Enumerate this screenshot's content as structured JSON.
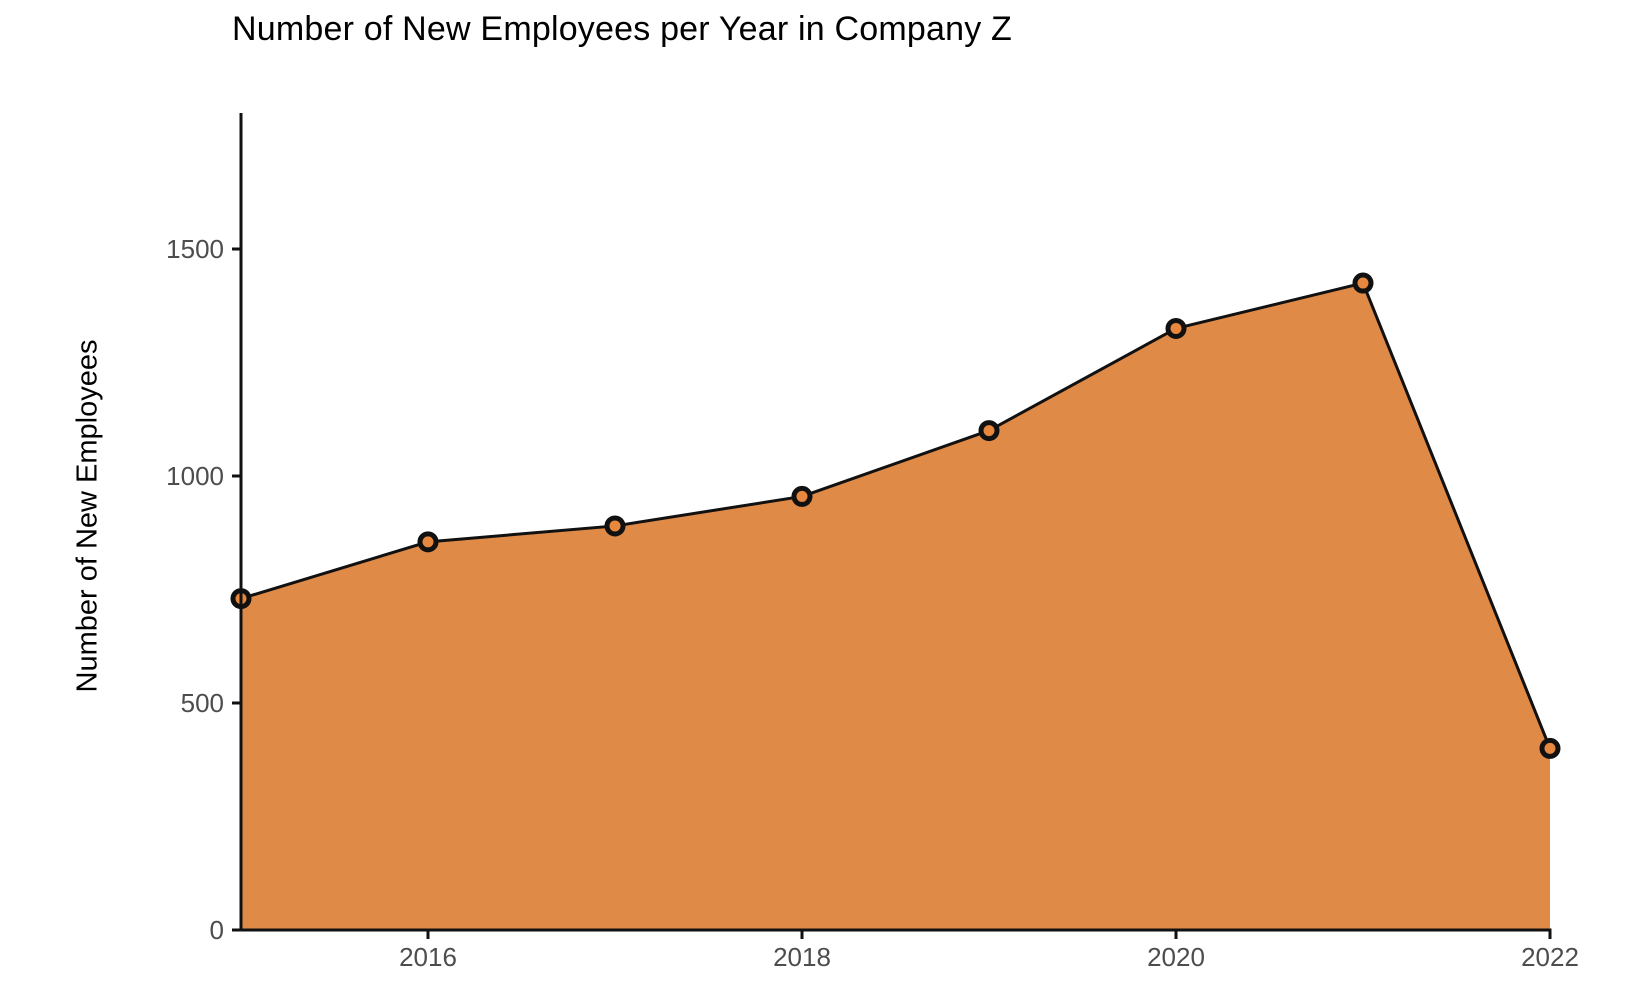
{
  "chart_data": {
    "type": "area",
    "title": "Number of New Employees per Year in Company Z",
    "xlabel": "",
    "ylabel": "Number of New Employees",
    "x": [
      2015,
      2016,
      2017,
      2018,
      2019,
      2020,
      2021,
      2022
    ],
    "values": [
      730,
      855,
      890,
      955,
      1100,
      1325,
      1425,
      400
    ],
    "ylim": [
      0,
      1800
    ],
    "yticks": [
      0,
      500,
      1000,
      1500
    ],
    "xticks": [
      2016,
      2018,
      2020,
      2022
    ],
    "grid": false,
    "legend": false,
    "colors": {
      "area_fill": "#E08A48",
      "marker_fill": "#E8883E",
      "line": "#111111",
      "axis": "#111111",
      "tick_label": "#4d4d4d",
      "title_text": "#000000",
      "background": "#ffffff"
    }
  }
}
